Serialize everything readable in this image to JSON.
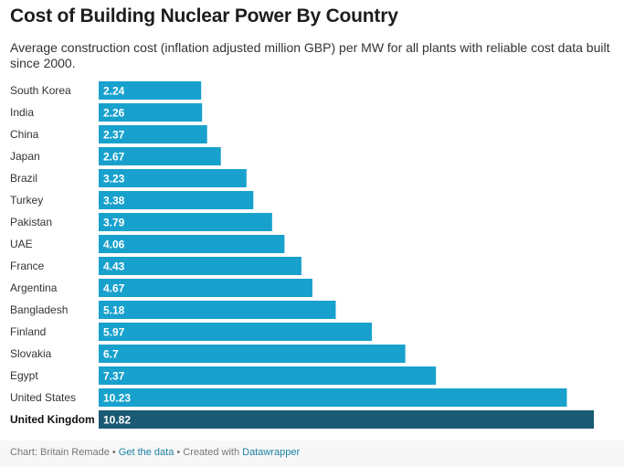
{
  "title": "Cost of Building Nuclear Power By Country",
  "subtitle": "Average construction cost (inflation adjusted million GBP) per MW for all plants with reliable cost data built since 2000.",
  "footer": {
    "source": "Chart: Britain Remade",
    "sep1": " • ",
    "get_data": "Get the data",
    "sep2": " • Created with ",
    "tool": "Datawrapper"
  },
  "colors": {
    "bar": "#18a1cd",
    "highlight": "#1a5a73",
    "label_text": "#ffffff"
  },
  "chart_data": {
    "type": "bar",
    "orientation": "horizontal",
    "categories": [
      "South Korea",
      "India",
      "China",
      "Japan",
      "Brazil",
      "Turkey",
      "Pakistan",
      "UAE",
      "France",
      "Argentina",
      "Bangladesh",
      "Finland",
      "Slovakia",
      "Egypt",
      "United States",
      "United Kingdom"
    ],
    "values": [
      2.24,
      2.26,
      2.37,
      2.67,
      3.23,
      3.38,
      3.79,
      4.06,
      4.43,
      4.67,
      5.18,
      5.97,
      6.7,
      7.37,
      10.23,
      10.82
    ],
    "value_labels": [
      "2.24",
      "2.26",
      "2.37",
      "2.67",
      "3.23",
      "3.38",
      "3.79",
      "4.06",
      "4.43",
      "4.67",
      "5.18",
      "5.97",
      "6.7",
      "7.37",
      "10.23",
      "10.82"
    ],
    "highlighted": [
      "United Kingdom"
    ],
    "xlim": [
      0,
      10.82
    ],
    "xlabel": "",
    "ylabel": "",
    "grid": false,
    "legend": "none"
  }
}
